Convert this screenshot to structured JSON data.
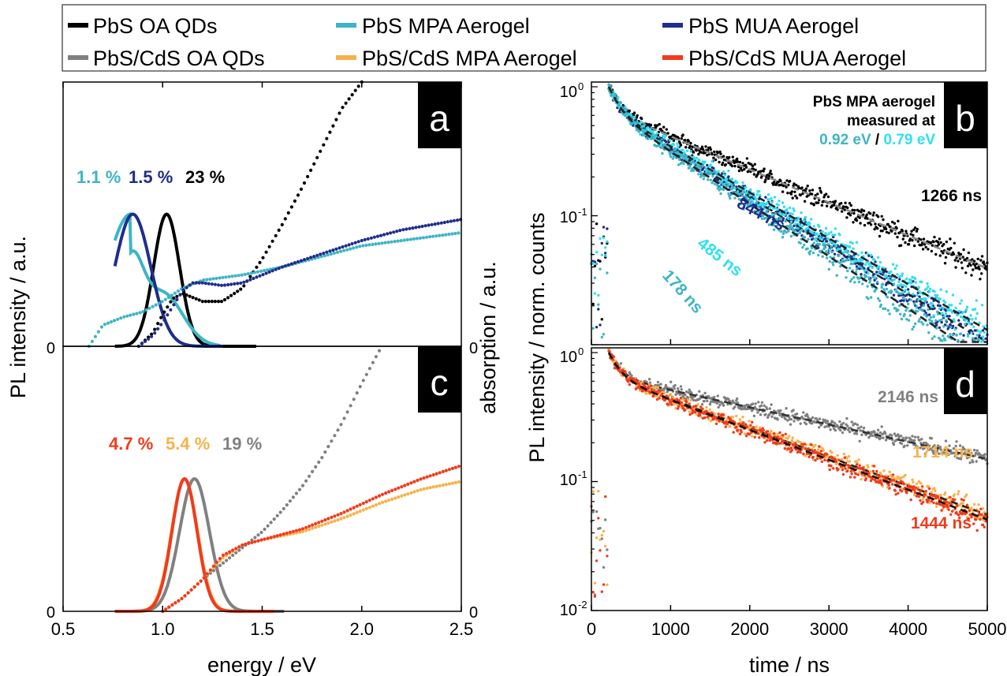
{
  "legend": {
    "entries": [
      {
        "label": "PbS OA QDs",
        "color": "#000000"
      },
      {
        "label": "PbS MPA Aerogel",
        "color": "#3db5c6"
      },
      {
        "label": "PbS MUA Aerogel",
        "color": "#1f2d8c"
      },
      {
        "label": "PbS/CdS OA QDs",
        "color": "#808080"
      },
      {
        "label": "PbS/CdS MPA Aerogel",
        "color": "#f7b24a"
      },
      {
        "label": "PbS/CdS MUA Aerogel",
        "color": "#f23a1c"
      }
    ]
  },
  "left": {
    "ylabel_left": "PL intensity / a.u.",
    "ylabel_right": "absorption / a.u.",
    "xlabel": "energy / eV",
    "xticks": [
      "0.5",
      "1.0",
      "1.5",
      "2.0",
      "2.5"
    ],
    "zero_label": "0"
  },
  "right": {
    "ylabel": "PL intensity / norm. counts",
    "xlabel": "time / ns",
    "xticks": [
      "0",
      "1000",
      "2000",
      "3000",
      "4000",
      "5000"
    ],
    "yticks": [
      "10",
      "10",
      "10"
    ],
    "ytick_exps": [
      "0",
      "-1",
      "-2"
    ],
    "top_ytick": "10",
    "top_ytick_exp": "0"
  },
  "panel_labels": {
    "a": "a",
    "b": "b",
    "c": "c",
    "d": "d"
  },
  "annotations": {
    "a_qy": [
      {
        "text": "1.1 %",
        "color": "#3db5c6"
      },
      {
        "text": "1.5 %",
        "color": "#1f2d8c"
      },
      {
        "text": "23 %",
        "color": "#000000"
      }
    ],
    "c_qy": [
      {
        "text": "4.7 %",
        "color": "#f23a1c"
      },
      {
        "text": "5.4 %",
        "color": "#f7b24a"
      },
      {
        "text": "19 %",
        "color": "#808080"
      }
    ],
    "b_note": {
      "line1": "PbS MPA aerogel",
      "line2": "measured at",
      "e1": "0.92 eV",
      "sep": " / ",
      "e2": "0.79 eV",
      "e1_color": "#3db5c6",
      "e2_color": "#2fe0ef"
    },
    "b_lifetimes": [
      {
        "text": "1266 ns",
        "color": "#000000"
      },
      {
        "text": "844 ns",
        "color": "#1f2d8c"
      },
      {
        "text": "485 ns",
        "color": "#2fe0ef"
      },
      {
        "text": "178 ns",
        "color": "#3db5c6"
      }
    ],
    "d_lifetimes": [
      {
        "text": "2146 ns",
        "color": "#808080"
      },
      {
        "text": "1714 ns",
        "color": "#f7b24a"
      },
      {
        "text": "1444 ns",
        "color": "#f23a1c"
      }
    ]
  },
  "chart_data": [
    {
      "panel": "a",
      "type": "line",
      "xlabel": "energy / eV",
      "ylabel": "PL intensity / a.u.",
      "xlim": [
        0.5,
        2.5
      ],
      "ylim": [
        0,
        1.0
      ],
      "series": [
        {
          "name": "PbS OA QDs",
          "kind": "PL",
          "color": "#000000",
          "peak_x": 1.02,
          "peak_y": 0.5,
          "width": 0.065
        },
        {
          "name": "PbS MPA Aerogel",
          "kind": "PL",
          "color": "#3db5c6",
          "peak_x": 0.84,
          "peak_y": 0.5,
          "width": 0.12
        },
        {
          "name": "PbS MUA Aerogel",
          "kind": "PL",
          "color": "#1f2d8c",
          "peak_x": 0.85,
          "peak_y": 0.5,
          "width": 0.09
        },
        {
          "name": "PbS OA QDs",
          "kind": "absorption",
          "color": "#000000",
          "x": [
            0.88,
            0.95,
            1.0,
            1.05,
            1.1,
            1.2,
            1.3,
            1.4,
            1.5,
            1.6,
            1.7,
            1.8,
            1.9,
            2.0
          ],
          "y": [
            0.0,
            0.05,
            0.12,
            0.18,
            0.2,
            0.17,
            0.17,
            0.22,
            0.33,
            0.46,
            0.6,
            0.75,
            0.9,
            1.0
          ]
        },
        {
          "name": "PbS MPA Aerogel",
          "kind": "absorption",
          "color": "#3db5c6",
          "x": [
            0.63,
            0.7,
            0.8,
            0.9,
            1.0,
            1.1,
            1.2,
            1.4,
            1.6,
            1.8,
            2.0,
            2.2,
            2.5
          ],
          "y": [
            0.0,
            0.08,
            0.11,
            0.13,
            0.17,
            0.22,
            0.25,
            0.27,
            0.3,
            0.34,
            0.38,
            0.4,
            0.43
          ]
        },
        {
          "name": "PbS MUA Aerogel",
          "kind": "absorption",
          "color": "#1f2d8c",
          "x": [
            0.88,
            0.95,
            1.0,
            1.05,
            1.1,
            1.15,
            1.2,
            1.3,
            1.4,
            1.6,
            1.8,
            2.0,
            2.2,
            2.5
          ],
          "y": [
            0.0,
            0.04,
            0.09,
            0.15,
            0.21,
            0.24,
            0.24,
            0.23,
            0.24,
            0.3,
            0.35,
            0.4,
            0.44,
            0.48
          ]
        }
      ]
    },
    {
      "panel": "c",
      "type": "line",
      "xlabel": "energy / eV",
      "ylabel": "PL intensity / a.u.",
      "xlim": [
        0.5,
        2.5
      ],
      "ylim": [
        0,
        1.0
      ],
      "series": [
        {
          "name": "PbS/CdS OA QDs",
          "kind": "PL",
          "color": "#808080",
          "peak_x": 1.16,
          "peak_y": 0.5,
          "width": 0.075
        },
        {
          "name": "PbS/CdS MPA Aerogel",
          "kind": "PL",
          "color": "#f7b24a",
          "peak_x": 1.11,
          "peak_y": 0.5,
          "width": 0.065
        },
        {
          "name": "PbS/CdS MUA Aerogel",
          "kind": "PL",
          "color": "#f23a1c",
          "peak_x": 1.11,
          "peak_y": 0.5,
          "width": 0.063
        },
        {
          "name": "PbS/CdS OA QDs",
          "kind": "absorption",
          "color": "#808080",
          "x": [
            1.0,
            1.1,
            1.2,
            1.3,
            1.4,
            1.5,
            1.6,
            1.7,
            1.8,
            1.9,
            2.0,
            2.1
          ],
          "y": [
            0.0,
            0.05,
            0.12,
            0.18,
            0.24,
            0.3,
            0.38,
            0.47,
            0.58,
            0.71,
            0.86,
            1.0
          ]
        },
        {
          "name": "PbS/CdS MPA Aerogel",
          "kind": "absorption",
          "color": "#f7b24a",
          "x": [
            1.0,
            1.1,
            1.2,
            1.3,
            1.4,
            1.5,
            1.7,
            1.9,
            2.1,
            2.3,
            2.5
          ],
          "y": [
            0.0,
            0.05,
            0.12,
            0.2,
            0.25,
            0.27,
            0.3,
            0.35,
            0.41,
            0.46,
            0.49
          ]
        },
        {
          "name": "PbS/CdS MUA Aerogel",
          "kind": "absorption",
          "color": "#f23a1c",
          "x": [
            1.0,
            1.1,
            1.2,
            1.3,
            1.4,
            1.5,
            1.7,
            1.9,
            2.1,
            2.3,
            2.5
          ],
          "y": [
            0.0,
            0.05,
            0.12,
            0.21,
            0.25,
            0.27,
            0.31,
            0.37,
            0.44,
            0.5,
            0.55
          ]
        }
      ]
    },
    {
      "panel": "b",
      "type": "scatter",
      "xlabel": "time / ns",
      "ylabel": "PL intensity / norm. counts",
      "xlim": [
        0,
        5000
      ],
      "ylim": [
        0.01,
        1
      ],
      "log_y": true,
      "series": [
        {
          "name": "PbS OA QDs",
          "color": "#000000",
          "fit_color": "#888888",
          "lifetime_ns": 1266,
          "fit_end": 0.06
        },
        {
          "name": "PbS MUA Aerogel",
          "color": "#1f2d8c",
          "fit_color": "#222222",
          "lifetime_ns": 844,
          "fit_end": 0.016
        },
        {
          "name": "PbS MPA Aerogel (0.79 eV)",
          "color": "#2fe0ef",
          "fit_color": "#222222",
          "lifetime_ns": 485,
          "fit_end": 0.02
        },
        {
          "name": "PbS MPA Aerogel (0.92 eV)",
          "color": "#3db5c6",
          "fit_color": "#222222",
          "lifetime_ns": 178,
          "fit_end": 0.0115
        }
      ]
    },
    {
      "panel": "d",
      "type": "scatter",
      "xlabel": "time / ns",
      "ylabel": "PL intensity / norm. counts",
      "xlim": [
        0,
        5000
      ],
      "ylim": [
        0.01,
        1
      ],
      "log_y": true,
      "series": [
        {
          "name": "PbS/CdS OA QDs",
          "color": "#808080",
          "fit_color": "#333333",
          "lifetime_ns": 2146,
          "fit_end": 0.23
        },
        {
          "name": "PbS/CdS MPA Aerogel",
          "color": "#f7b24a",
          "fit_color": "#222222",
          "lifetime_ns": 1714,
          "fit_end": 0.085
        },
        {
          "name": "PbS/CdS MUA Aerogel",
          "color": "#f23a1c",
          "fit_color": "#111111",
          "lifetime_ns": 1444,
          "fit_end": 0.078
        }
      ]
    }
  ]
}
